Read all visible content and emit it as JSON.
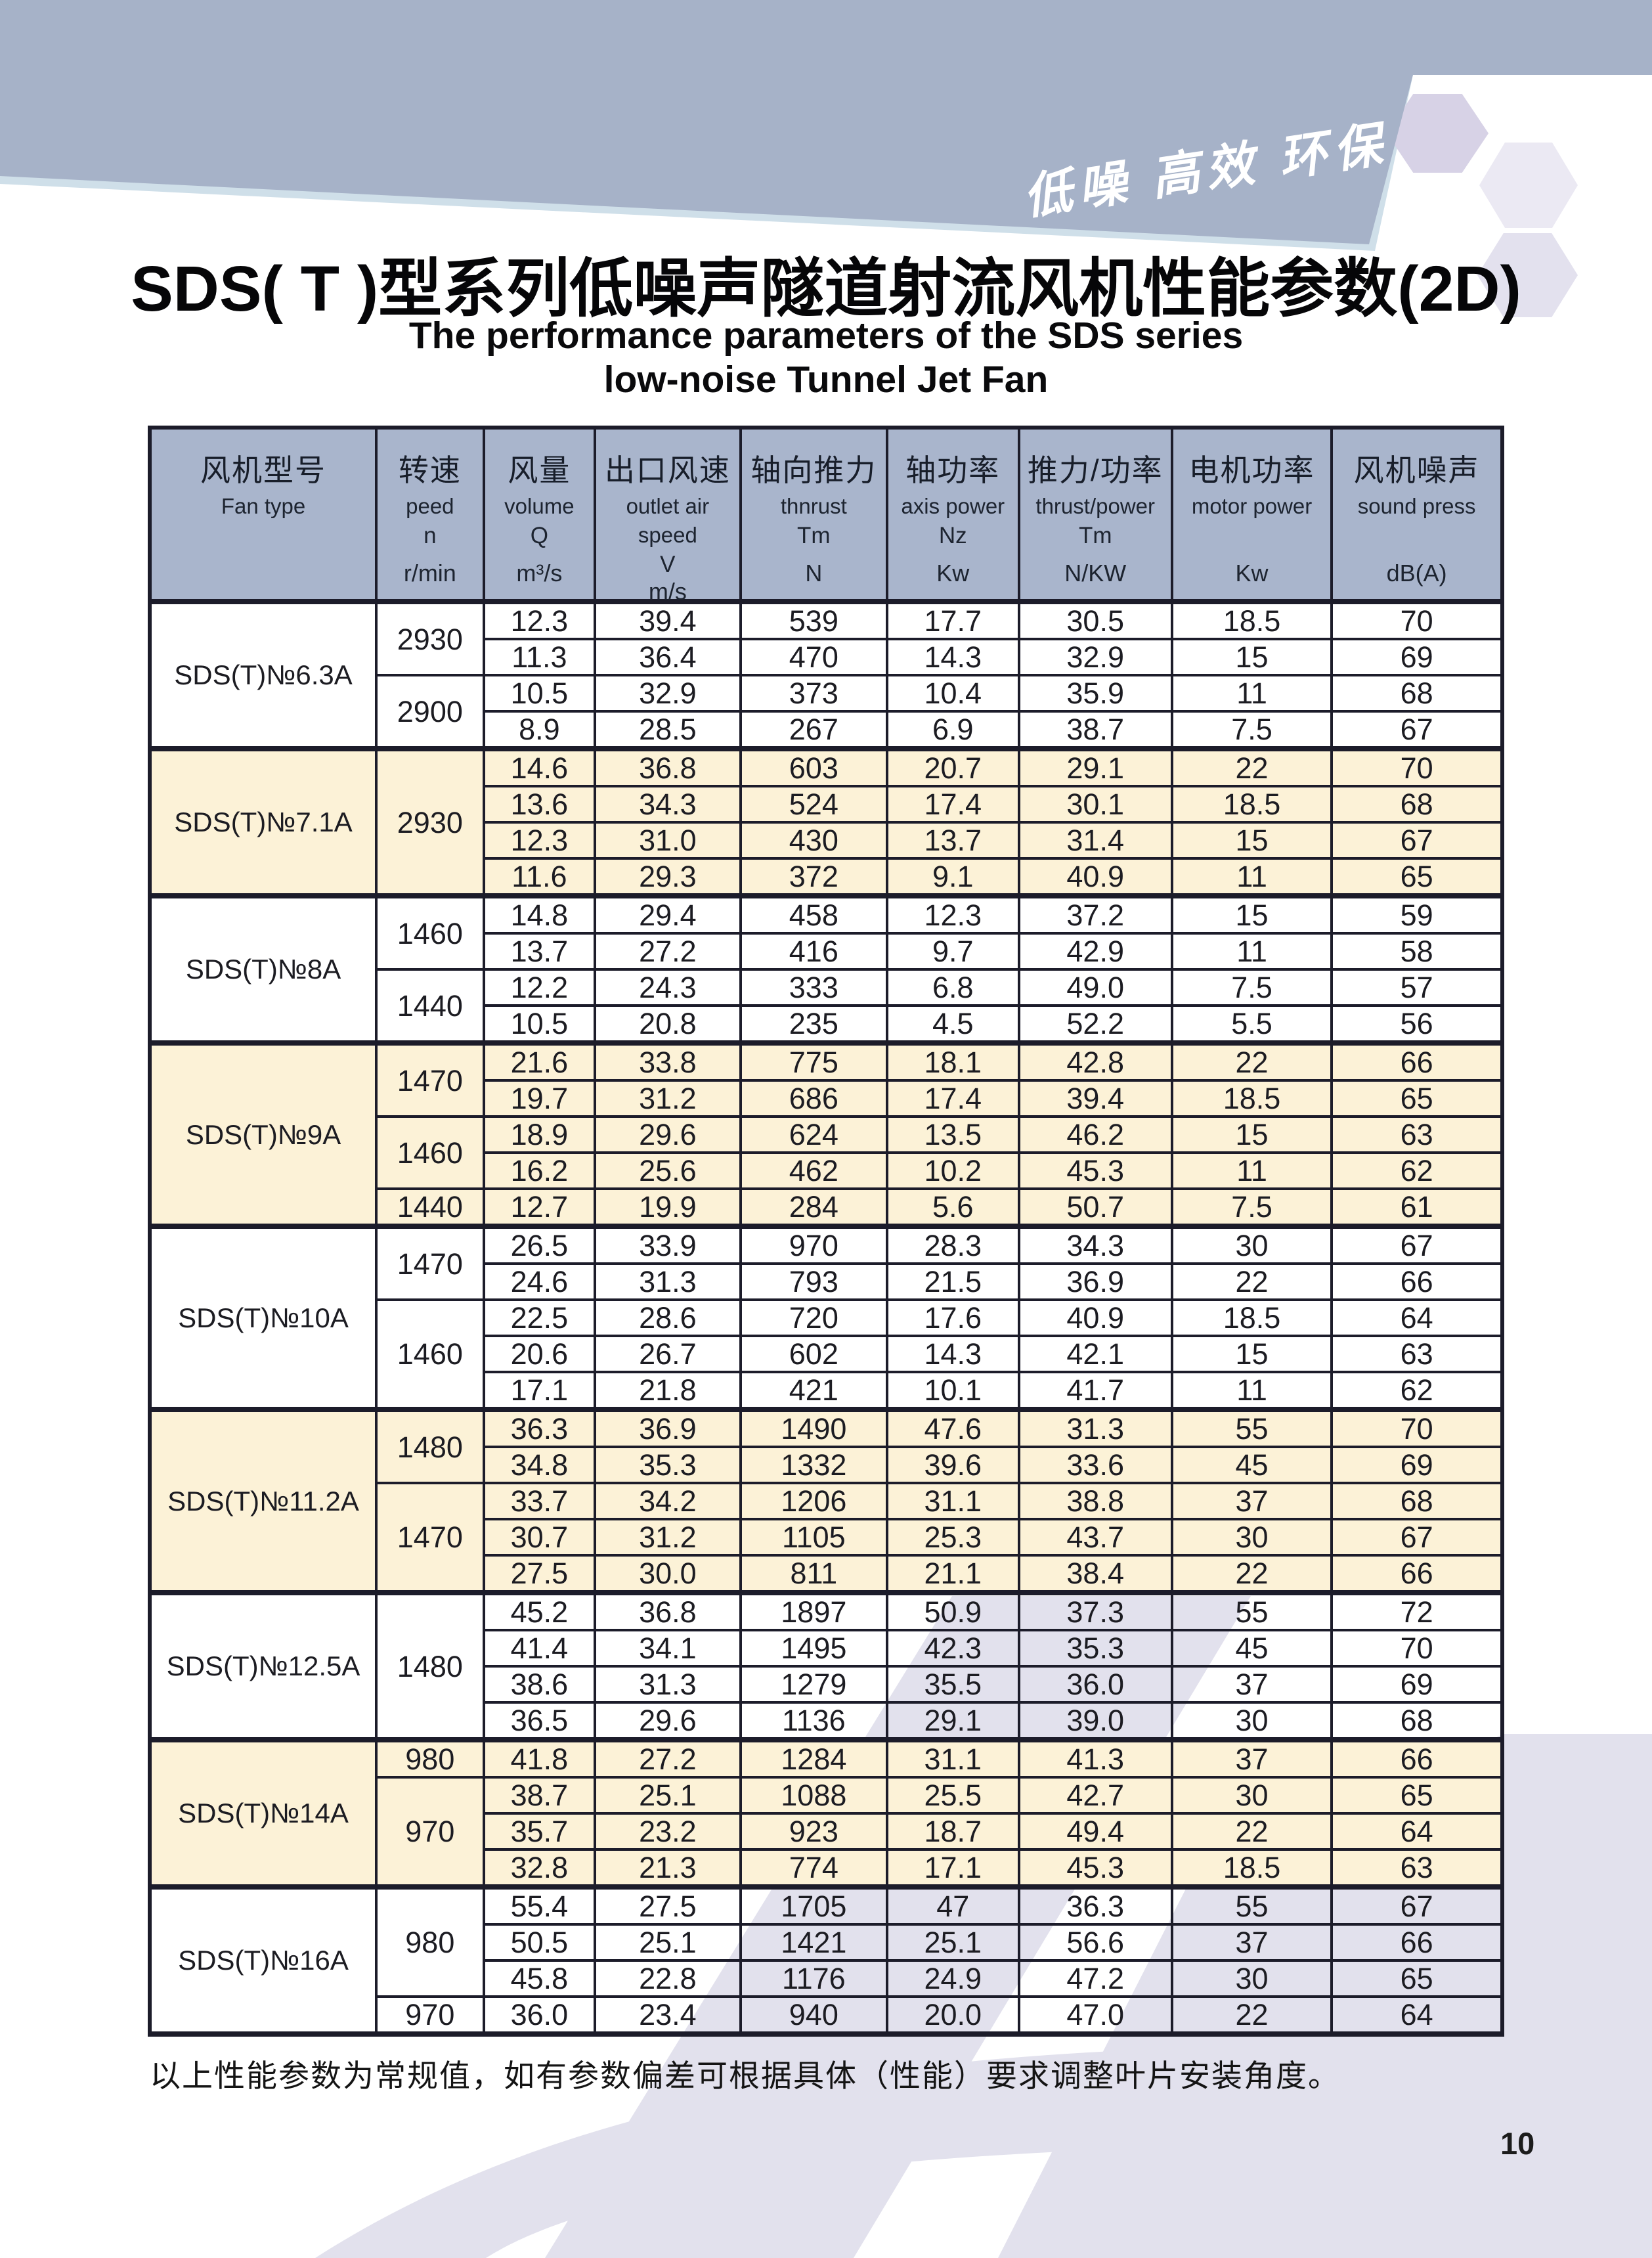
{
  "banner": {
    "slogan": "低噪 高效 环保",
    "bg_color": "#a6b2c8",
    "edge_line_color": "#cfdfe9",
    "hexagon_colors": [
      "#d7d2e6",
      "#ebe9f3",
      "#e3e1ee"
    ]
  },
  "title": {
    "zh": "SDS( T )型系列低噪声隧道射流风机性能参数(2D)",
    "en_line1": "The performance parameters of the SDS series",
    "en_line2": "low-noise Tunnel Jet Fan"
  },
  "table": {
    "header_bg": "#a9b5cc",
    "cream_bg": "#fcf2d7",
    "border_color": "#1c1c2a",
    "watermark_color": "#e2e1ed",
    "col_widths_pct": [
      16.75,
      7.94,
      8.23,
      10.75,
      10.85,
      9.73,
      11.33,
      11.81,
      12.61
    ],
    "columns": [
      {
        "zh": "风机型号",
        "en": [
          "Fan type"
        ],
        "sym": "",
        "unit": ""
      },
      {
        "zh": "转速",
        "en": [
          "peed"
        ],
        "sym": "n",
        "unit": "r/min"
      },
      {
        "zh": "风量",
        "en": [
          "volume"
        ],
        "sym": "Q",
        "unit": "m³/s"
      },
      {
        "zh": "出口风速",
        "en": [
          "outlet air",
          "speed"
        ],
        "sym": "V",
        "unit": "m/s"
      },
      {
        "zh": "轴向推力",
        "en": [
          "thnrust"
        ],
        "sym": "Tm",
        "unit": "N"
      },
      {
        "zh": "轴功率",
        "en": [
          "axis power"
        ],
        "sym": "Nz",
        "unit": "Kw"
      },
      {
        "zh": "推力/功率",
        "en": [
          "thrust/power"
        ],
        "sym": "Tm",
        "unit": "N/KW"
      },
      {
        "zh": "电机功率",
        "en": [
          "motor power"
        ],
        "sym": "",
        "unit": "Kw"
      },
      {
        "zh": "风机噪声",
        "en": [
          "sound press"
        ],
        "sym": "",
        "unit": "dB(A)"
      }
    ],
    "groups": [
      {
        "model": "SDS(T)№6.3A",
        "shade": "white",
        "speeds": [
          [
            "2930",
            2
          ],
          [
            "2900",
            2
          ]
        ],
        "rows": [
          [
            "12.3",
            "39.4",
            "539",
            "17.7",
            "30.5",
            "18.5",
            "70"
          ],
          [
            "11.3",
            "36.4",
            "470",
            "14.3",
            "32.9",
            "15",
            "69"
          ],
          [
            "10.5",
            "32.9",
            "373",
            "10.4",
            "35.9",
            "11",
            "68"
          ],
          [
            "8.9",
            "28.5",
            "267",
            "6.9",
            "38.7",
            "7.5",
            "67"
          ]
        ]
      },
      {
        "model": "SDS(T)№7.1A",
        "shade": "cream",
        "speeds": [
          [
            "2930",
            4
          ]
        ],
        "rows": [
          [
            "14.6",
            "36.8",
            "603",
            "20.7",
            "29.1",
            "22",
            "70"
          ],
          [
            "13.6",
            "34.3",
            "524",
            "17.4",
            "30.1",
            "18.5",
            "68"
          ],
          [
            "12.3",
            "31.0",
            "430",
            "13.7",
            "31.4",
            "15",
            "67"
          ],
          [
            "11.6",
            "29.3",
            "372",
            "9.1",
            "40.9",
            "11",
            "65"
          ]
        ]
      },
      {
        "model": "SDS(T)№8A",
        "shade": "white",
        "speeds": [
          [
            "1460",
            2
          ],
          [
            "1440",
            2
          ]
        ],
        "rows": [
          [
            "14.8",
            "29.4",
            "458",
            "12.3",
            "37.2",
            "15",
            "59"
          ],
          [
            "13.7",
            "27.2",
            "416",
            "9.7",
            "42.9",
            "11",
            "58"
          ],
          [
            "12.2",
            "24.3",
            "333",
            "6.8",
            "49.0",
            "7.5",
            "57"
          ],
          [
            "10.5",
            "20.8",
            "235",
            "4.5",
            "52.2",
            "5.5",
            "56"
          ]
        ]
      },
      {
        "model": "SDS(T)№9A",
        "shade": "cream",
        "speeds": [
          [
            "1470",
            2
          ],
          [
            "1460",
            2
          ],
          [
            "1440",
            1
          ]
        ],
        "rows": [
          [
            "21.6",
            "33.8",
            "775",
            "18.1",
            "42.8",
            "22",
            "66"
          ],
          [
            "19.7",
            "31.2",
            "686",
            "17.4",
            "39.4",
            "18.5",
            "65"
          ],
          [
            "18.9",
            "29.6",
            "624",
            "13.5",
            "46.2",
            "15",
            "63"
          ],
          [
            "16.2",
            "25.6",
            "462",
            "10.2",
            "45.3",
            "11",
            "62"
          ],
          [
            "12.7",
            "19.9",
            "284",
            "5.6",
            "50.7",
            "7.5",
            "61"
          ]
        ]
      },
      {
        "model": "SDS(T)№10A",
        "shade": "white",
        "speeds": [
          [
            "1470",
            2
          ],
          [
            "1460",
            3
          ]
        ],
        "rows": [
          [
            "26.5",
            "33.9",
            "970",
            "28.3",
            "34.3",
            "30",
            "67"
          ],
          [
            "24.6",
            "31.3",
            "793",
            "21.5",
            "36.9",
            "22",
            "66"
          ],
          [
            "22.5",
            "28.6",
            "720",
            "17.6",
            "40.9",
            "18.5",
            "64"
          ],
          [
            "20.6",
            "26.7",
            "602",
            "14.3",
            "42.1",
            "15",
            "63"
          ],
          [
            "17.1",
            "21.8",
            "421",
            "10.1",
            "41.7",
            "11",
            "62"
          ]
        ]
      },
      {
        "model": "SDS(T)№11.2A",
        "shade": "cream",
        "speeds": [
          [
            "1480",
            2
          ],
          [
            "1470",
            3
          ]
        ],
        "rows": [
          [
            "36.3",
            "36.9",
            "1490",
            "47.6",
            "31.3",
            "55",
            "70"
          ],
          [
            "34.8",
            "35.3",
            "1332",
            "39.6",
            "33.6",
            "45",
            "69"
          ],
          [
            "33.7",
            "34.2",
            "1206",
            "31.1",
            "38.8",
            "37",
            "68"
          ],
          [
            "30.7",
            "31.2",
            "1105",
            "25.3",
            "43.7",
            "30",
            "67"
          ],
          [
            "27.5",
            "30.0",
            "811",
            "21.1",
            "38.4",
            "22",
            "66"
          ]
        ]
      },
      {
        "model": "SDS(T)№12.5A",
        "shade": "white",
        "speeds": [
          [
            "1480",
            4
          ]
        ],
        "rows": [
          [
            "45.2",
            "36.8",
            "1897",
            "50.9",
            "37.3",
            "55",
            "72"
          ],
          [
            "41.4",
            "34.1",
            "1495",
            "42.3",
            "35.3",
            "45",
            "70"
          ],
          [
            "38.6",
            "31.3",
            "1279",
            "35.5",
            "36.0",
            "37",
            "69"
          ],
          [
            "36.5",
            "29.6",
            "1136",
            "29.1",
            "39.0",
            "30",
            "68"
          ]
        ]
      },
      {
        "model": "SDS(T)№14A",
        "shade": "cream",
        "speeds": [
          [
            "980",
            1
          ],
          [
            "970",
            3
          ]
        ],
        "rows": [
          [
            "41.8",
            "27.2",
            "1284",
            "31.1",
            "41.3",
            "37",
            "66"
          ],
          [
            "38.7",
            "25.1",
            "1088",
            "25.5",
            "42.7",
            "30",
            "65"
          ],
          [
            "35.7",
            "23.2",
            "923",
            "18.7",
            "49.4",
            "22",
            "64"
          ],
          [
            "32.8",
            "21.3",
            "774",
            "17.1",
            "45.3",
            "18.5",
            "63"
          ]
        ]
      },
      {
        "model": "SDS(T)№16A",
        "shade": "white",
        "speeds": [
          [
            "980",
            3
          ],
          [
            "970",
            1
          ]
        ],
        "rows": [
          [
            "55.4",
            "27.5",
            "1705",
            "47",
            "36.3",
            "55",
            "67"
          ],
          [
            "50.5",
            "25.1",
            "1421",
            "25.1",
            "56.6",
            "37",
            "66"
          ],
          [
            "45.8",
            "22.8",
            "1176",
            "24.9",
            "47.2",
            "30",
            "65"
          ],
          [
            "36.0",
            "23.4",
            "940",
            "20.0",
            "47.0",
            "22",
            "64"
          ]
        ]
      }
    ]
  },
  "note": "以上性能参数为常规值，如有参数偏差可根据具体（性能）要求调整叶片安装角度。",
  "page_number": "10"
}
